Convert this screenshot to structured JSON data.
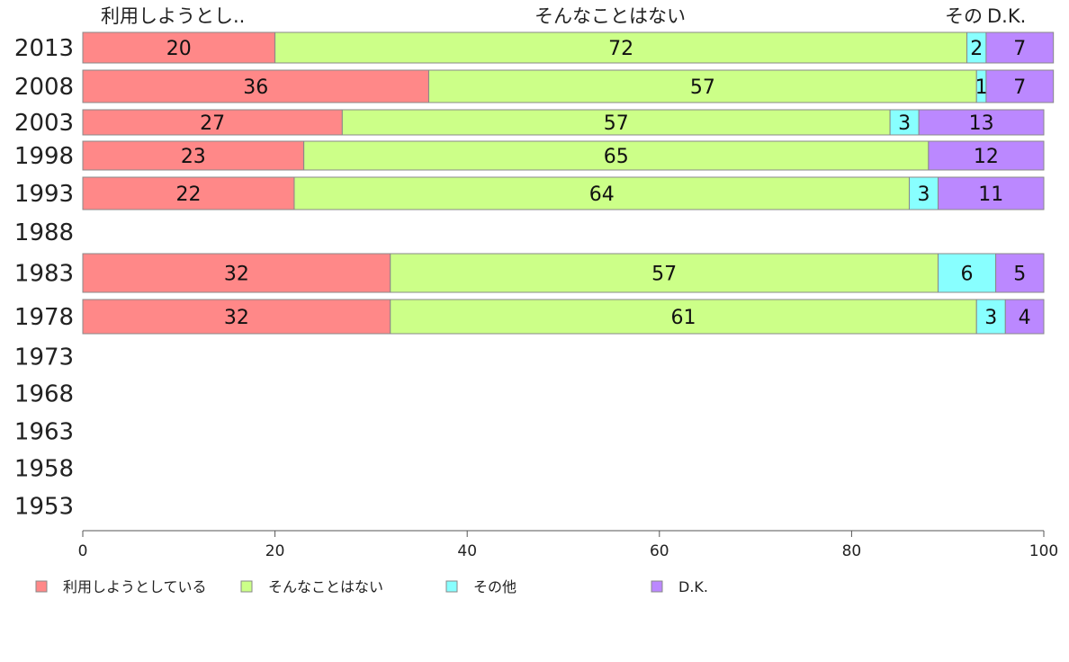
{
  "chart_data": {
    "type": "bar",
    "orientation": "horizontal",
    "stacked": true,
    "categories": [
      "2013",
      "2008",
      "2003",
      "1998",
      "1993",
      "1988",
      "1983",
      "1978",
      "1973",
      "1968",
      "1963",
      "1958",
      "1953"
    ],
    "series": [
      {
        "name": "利用しようとしている",
        "values": [
          20,
          36,
          27,
          23,
          22,
          null,
          32,
          32,
          null,
          null,
          null,
          null,
          null
        ],
        "color": "#ff8888"
      },
      {
        "name": "そんなことはない",
        "values": [
          72,
          57,
          57,
          65,
          64,
          null,
          57,
          61,
          null,
          null,
          null,
          null,
          null
        ],
        "color": "#ccff88"
      },
      {
        "name": "その他",
        "values": [
          2,
          1,
          3,
          0,
          3,
          null,
          6,
          3,
          null,
          null,
          null,
          null,
          null
        ],
        "color": "#88ffff"
      },
      {
        "name": "D.K.",
        "values": [
          7,
          7,
          13,
          12,
          11,
          null,
          5,
          4,
          null,
          null,
          null,
          null,
          null
        ],
        "color": "#bb88ff"
      }
    ],
    "column_headers": [
      "利用しようとし..",
      "そんなことはない",
      "その",
      "D.K."
    ],
    "xlim": [
      0,
      100
    ],
    "xticks": [
      0,
      20,
      40,
      60,
      80,
      100
    ],
    "grid": false,
    "legend_position": "bottom"
  }
}
